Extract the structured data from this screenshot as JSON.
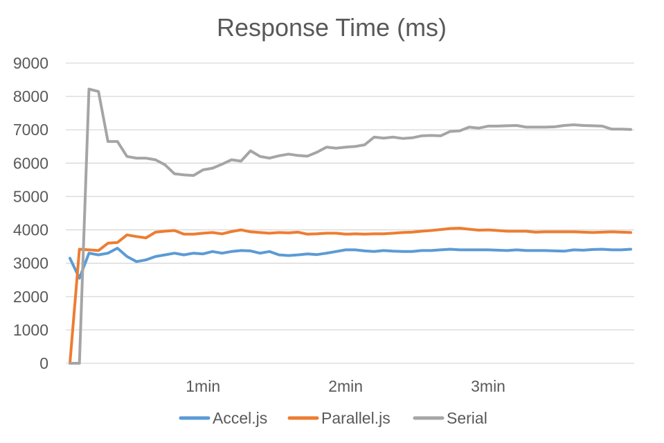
{
  "chart_data": {
    "type": "line",
    "title": "Response Time (ms)",
    "xlabel": "",
    "ylabel": "",
    "ylim": [
      0,
      9000
    ],
    "y_ticks": [
      0,
      1000,
      2000,
      3000,
      4000,
      5000,
      6000,
      7000,
      8000,
      9000
    ],
    "y_tick_labels": [
      "0",
      "1000",
      "2000",
      "3000",
      "4000",
      "5000",
      "6000",
      "7000",
      "8000",
      "9000"
    ],
    "x_count": 60,
    "x_tick_indices": [
      14,
      29,
      44
    ],
    "x_tick_labels": [
      "1min",
      "2min",
      "3min"
    ],
    "grid": true,
    "legend_position": "bottom",
    "series": [
      {
        "name": "Accel.js",
        "color": "#5b9bd5",
        "values": [
          3150,
          2550,
          3300,
          3250,
          3300,
          3450,
          3200,
          3050,
          3100,
          3200,
          3250,
          3300,
          3250,
          3300,
          3280,
          3350,
          3300,
          3350,
          3380,
          3370,
          3300,
          3350,
          3250,
          3230,
          3250,
          3280,
          3260,
          3300,
          3350,
          3400,
          3400,
          3370,
          3350,
          3380,
          3360,
          3350,
          3350,
          3380,
          3380,
          3400,
          3420,
          3400,
          3400,
          3400,
          3400,
          3390,
          3380,
          3400,
          3380,
          3380,
          3380,
          3370,
          3360,
          3400,
          3390,
          3410,
          3420,
          3400,
          3400,
          3420
        ]
      },
      {
        "name": "Parallel.js",
        "color": "#ed7d31",
        "values": [
          0,
          3420,
          3400,
          3380,
          3600,
          3620,
          3850,
          3800,
          3760,
          3930,
          3960,
          3980,
          3870,
          3870,
          3900,
          3920,
          3880,
          3950,
          4000,
          3940,
          3920,
          3900,
          3920,
          3910,
          3930,
          3870,
          3880,
          3900,
          3900,
          3870,
          3880,
          3870,
          3880,
          3880,
          3900,
          3920,
          3930,
          3960,
          3980,
          4010,
          4040,
          4050,
          4020,
          3990,
          4000,
          3980,
          3960,
          3960,
          3960,
          3930,
          3940,
          3940,
          3940,
          3940,
          3930,
          3920,
          3930,
          3940,
          3930,
          3920
        ]
      },
      {
        "name": "Serial",
        "color": "#a5a5a5",
        "values": [
          0,
          0,
          8220,
          8150,
          6650,
          6650,
          6200,
          6150,
          6150,
          6100,
          5950,
          5680,
          5650,
          5630,
          5800,
          5850,
          5970,
          6100,
          6060,
          6370,
          6200,
          6150,
          6220,
          6270,
          6230,
          6210,
          6330,
          6480,
          6450,
          6480,
          6500,
          6550,
          6780,
          6750,
          6780,
          6740,
          6760,
          6820,
          6830,
          6820,
          6950,
          6970,
          7080,
          7050,
          7110,
          7110,
          7120,
          7130,
          7080,
          7080,
          7080,
          7090,
          7130,
          7150,
          7130,
          7120,
          7110,
          7020,
          7020,
          7010
        ]
      }
    ]
  }
}
